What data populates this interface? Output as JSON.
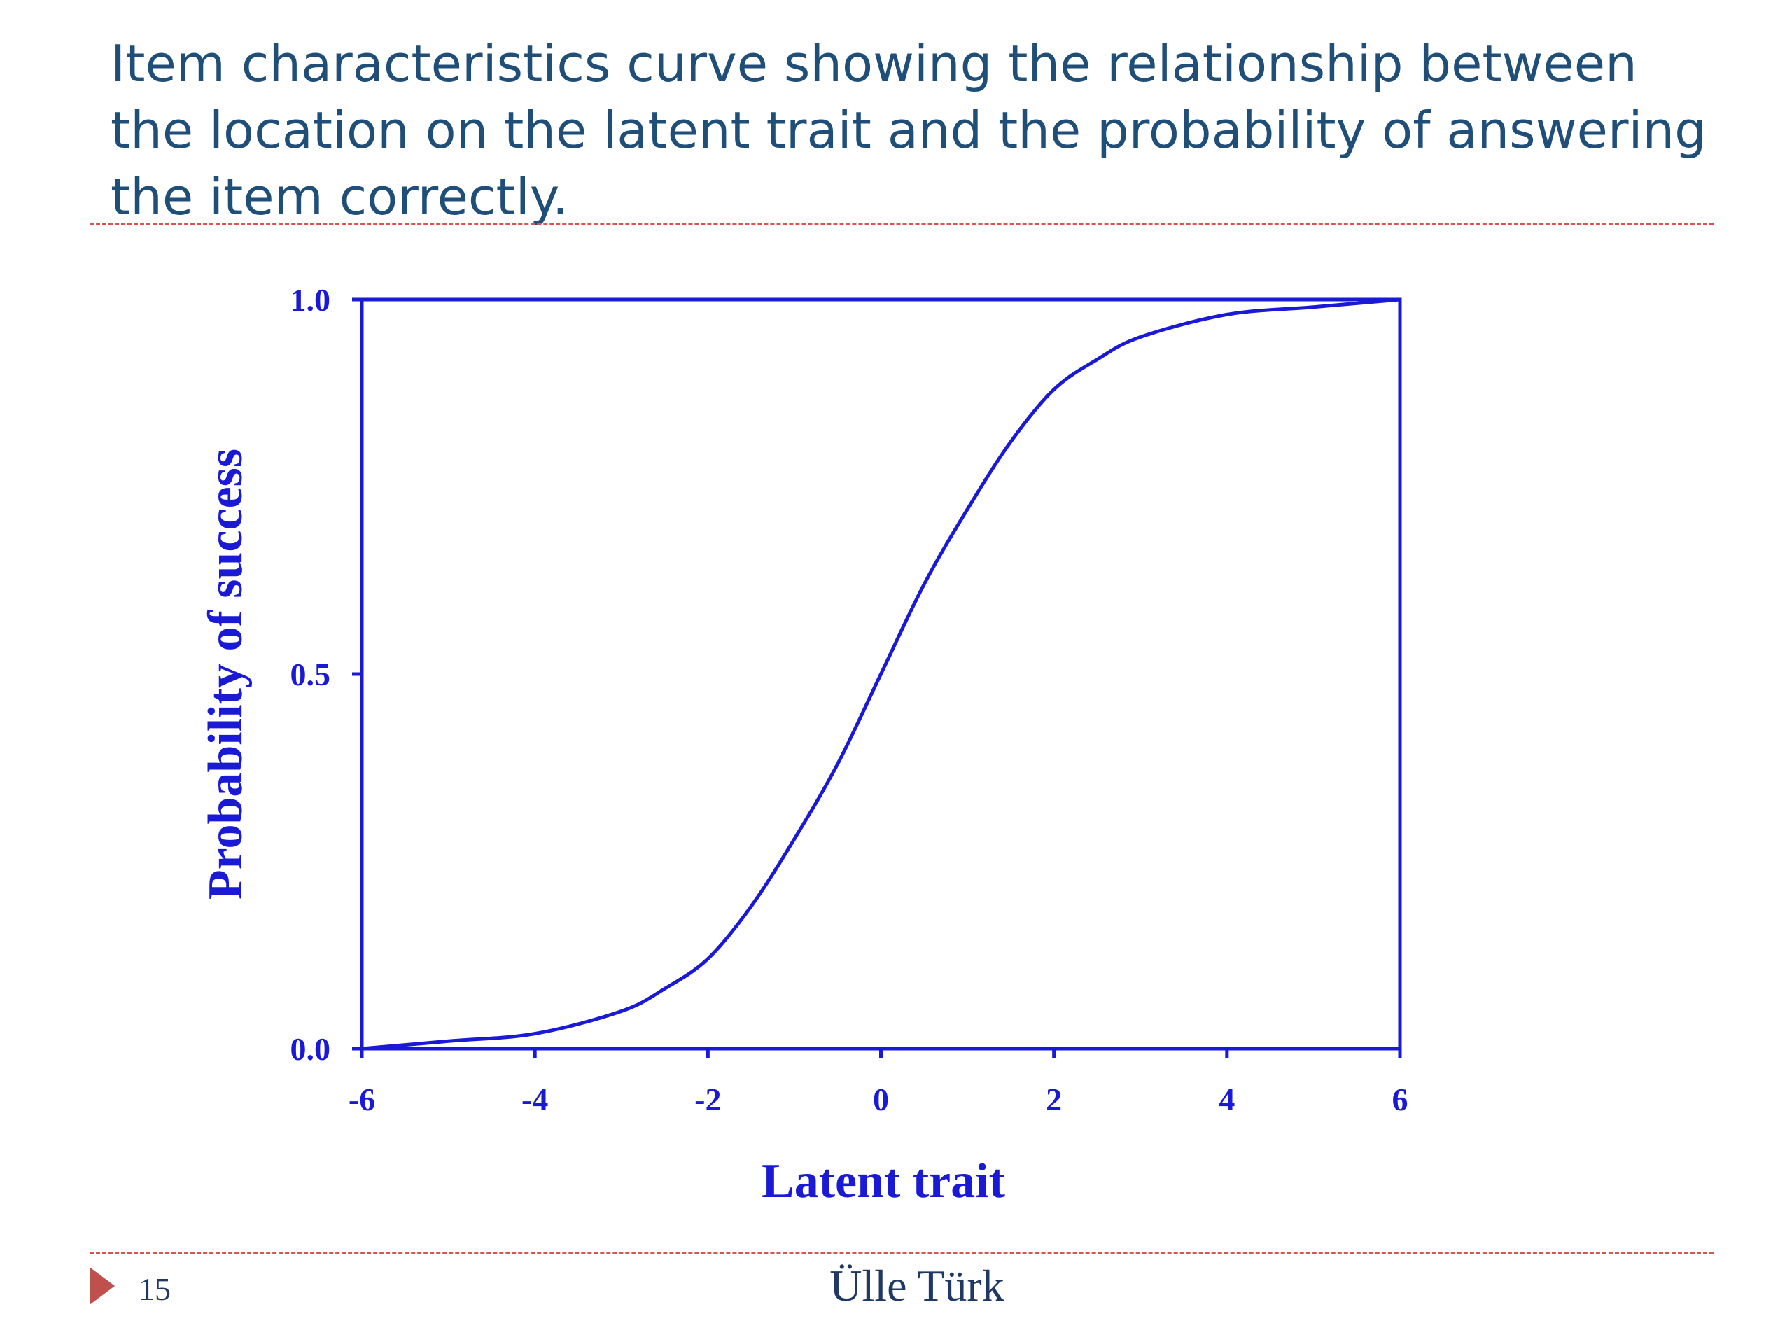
{
  "slide": {
    "title": "Item characteristics curve showing the relationship between the location on the latent trait and the probability of answering the item correctly.",
    "page_number": "15",
    "author": "Ülle Türk",
    "accent_color": "#c0504d",
    "title_color": "#1f4e79"
  },
  "chart_data": {
    "type": "line",
    "title": "",
    "xlabel": "Latent trait",
    "ylabel": "Probability of success",
    "xlim": [
      -6,
      6
    ],
    "ylim": [
      0,
      1
    ],
    "xticks": [
      "-6",
      "-4",
      "-2",
      "0",
      "2",
      "4",
      "6"
    ],
    "yticks": [
      "0.0",
      "0.5",
      "1.0"
    ],
    "grid": false,
    "color": "#1a1ad6",
    "series": [
      {
        "x": [
          -6,
          -5,
          -4,
          -3,
          -2.5,
          -2,
          -1.5,
          -1,
          -0.5,
          0,
          0.5,
          1,
          1.5,
          2,
          2.5,
          3,
          4,
          5,
          6
        ],
        "values": [
          0.0,
          0.01,
          0.02,
          0.05,
          0.08,
          0.12,
          0.19,
          0.28,
          0.38,
          0.5,
          0.62,
          0.72,
          0.81,
          0.88,
          0.92,
          0.95,
          0.98,
          0.99,
          1.0
        ]
      }
    ]
  }
}
